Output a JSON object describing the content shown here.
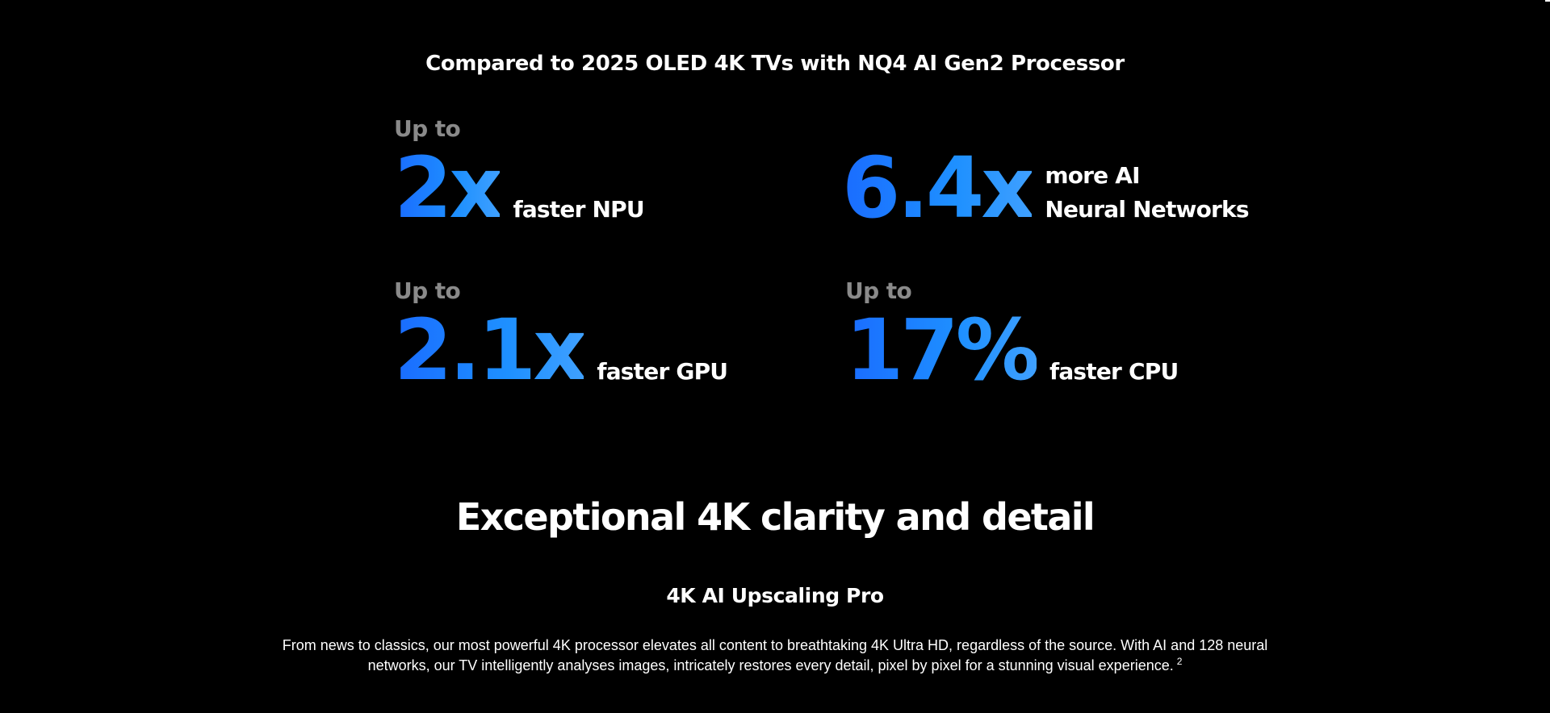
{
  "comparison": {
    "title": "Compared to 2025 OLED 4K TVs with NQ4 AI Gen2 Processor"
  },
  "stats": [
    {
      "prefix": "Up to",
      "value": "2x",
      "desc_lines": [
        "faster NPU"
      ]
    },
    {
      "prefix": "",
      "value": "6.4x",
      "desc_lines": [
        "more AI",
        "Neural Networks"
      ]
    },
    {
      "prefix": "Up to",
      "value": "2.1x",
      "desc_lines": [
        "faster GPU"
      ]
    },
    {
      "prefix": "Up to",
      "value": "17%",
      "desc_lines": [
        "faster CPU"
      ]
    }
  ],
  "section": {
    "heading": "Exceptional 4K clarity and detail"
  },
  "feature": {
    "title": "4K AI Upscaling Pro",
    "body_line1": "From news to classics, our most powerful 4K processor elevates all content to breathtaking 4K Ultra HD, regardless of the source. With AI and 128 neural",
    "body_line2": "networks, our TV intelligently analyses images, intricately restores every detail, pixel by pixel for a stunning visual experience.",
    "footnote": "2"
  },
  "colors": {
    "background": "#000000",
    "accent_blue": "#1e88ff",
    "muted_gray": "#8a8a8a",
    "text": "#ffffff"
  }
}
